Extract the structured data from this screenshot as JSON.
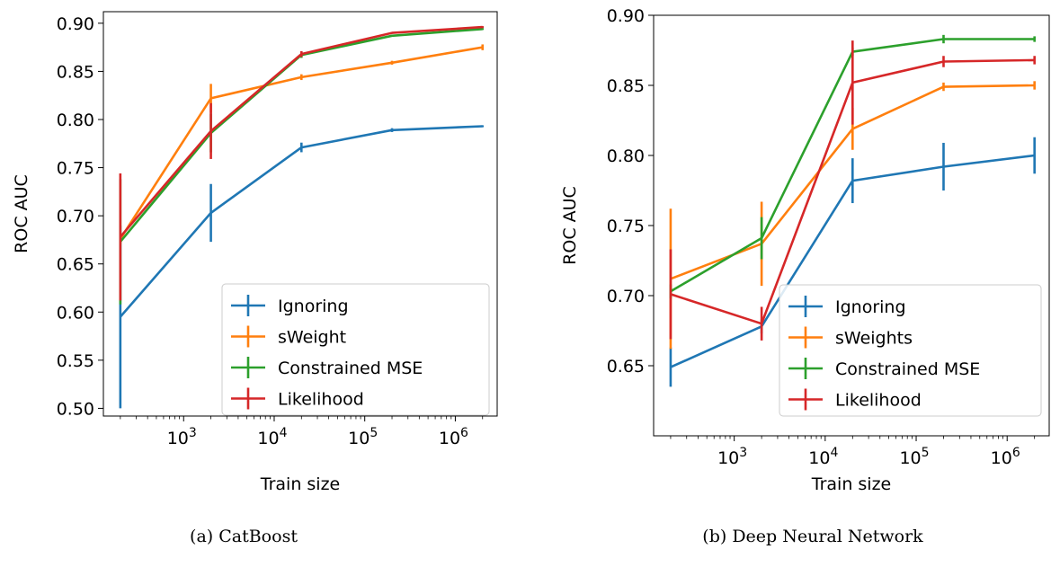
{
  "chart_data": [
    {
      "type": "line",
      "caption": "(a) CatBoost",
      "xlabel": "Train size",
      "ylabel": "ROC AUC",
      "xscale": "log",
      "xlim": [
        130,
        2900000
      ],
      "ylim": [
        0.492,
        0.912
      ],
      "x_ticks": [
        1000,
        10000,
        100000,
        1000000
      ],
      "x_tick_labels": [
        {
          "base": "10",
          "exp": "3"
        },
        {
          "base": "10",
          "exp": "4"
        },
        {
          "base": "10",
          "exp": "5"
        },
        {
          "base": "10",
          "exp": "6"
        }
      ],
      "y_ticks": [
        "0.50",
        "0.55",
        "0.60",
        "0.65",
        "0.70",
        "0.75",
        "0.80",
        "0.85",
        "0.90"
      ],
      "grid": false,
      "legend_position": "lower-right",
      "x": [
        200,
        2000,
        20000,
        200000,
        2000000
      ],
      "series": [
        {
          "name": "Ignoring",
          "color": "#1f77b4",
          "values": [
            0.595,
            0.703,
            0.771,
            0.789,
            0.793
          ],
          "errors": [
            0.095,
            0.03,
            0.005,
            0.002,
            0.001
          ]
        },
        {
          "name": "sWeight",
          "color": "#ff7f0e",
          "values": [
            0.676,
            0.822,
            0.844,
            0.859,
            0.875
          ],
          "errors": [
            0.005,
            0.015,
            0.003,
            0.002,
            0.003
          ]
        },
        {
          "name": "Constrained MSE",
          "color": "#2ca02c",
          "values": [
            0.673,
            0.786,
            0.867,
            0.887,
            0.894
          ],
          "errors": [
            0.065,
            0.02,
            0.003,
            0.001,
            0.001
          ]
        },
        {
          "name": "Likelihood",
          "color": "#d62728",
          "values": [
            0.678,
            0.788,
            0.868,
            0.89,
            0.896
          ],
          "errors": [
            0.066,
            0.029,
            0.003,
            0.001,
            0.001
          ]
        }
      ]
    },
    {
      "type": "line",
      "caption": "(b) Deep Neural Network",
      "xlabel": "Train size",
      "ylabel": "ROC AUC",
      "xscale": "log",
      "xlim": [
        130,
        2900000
      ],
      "ylim": [
        0.6,
        0.9
      ],
      "x_ticks": [
        1000,
        10000,
        100000,
        1000000
      ],
      "x_tick_labels": [
        {
          "base": "10",
          "exp": "3"
        },
        {
          "base": "10",
          "exp": "4"
        },
        {
          "base": "10",
          "exp": "5"
        },
        {
          "base": "10",
          "exp": "6"
        }
      ],
      "y_ticks": [
        "0.65",
        "0.70",
        "0.75",
        "0.80",
        "0.85",
        "0.90"
      ],
      "grid": false,
      "legend_position": "lower-right",
      "x": [
        200,
        2000,
        20000,
        200000,
        2000000
      ],
      "series": [
        {
          "name": "Ignoring",
          "color": "#1f77b4",
          "values": [
            0.649,
            0.678,
            0.782,
            0.792,
            0.8
          ],
          "errors": [
            0.014,
            0.005,
            0.016,
            0.017,
            0.013
          ]
        },
        {
          "name": "sWeights",
          "color": "#ff7f0e",
          "values": [
            0.712,
            0.737,
            0.819,
            0.849,
            0.85
          ],
          "errors": [
            0.05,
            0.03,
            0.015,
            0.003,
            0.003
          ]
        },
        {
          "name": "Constrained MSE",
          "color": "#2ca02c",
          "values": [
            0.703,
            0.741,
            0.874,
            0.883,
            0.883
          ],
          "errors": [
            0.005,
            0.015,
            0.003,
            0.003,
            0.002
          ]
        },
        {
          "name": "Likelihood",
          "color": "#d62728",
          "values": [
            0.701,
            0.68,
            0.852,
            0.867,
            0.868
          ],
          "errors": [
            0.032,
            0.012,
            0.03,
            0.004,
            0.003
          ]
        }
      ]
    }
  ]
}
